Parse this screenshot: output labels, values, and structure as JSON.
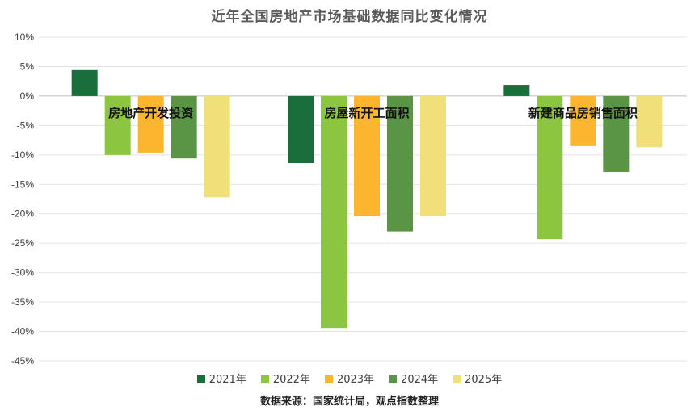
{
  "chart_data": {
    "type": "bar",
    "title": "近年全国房地产市场基础数据同比变化情况",
    "categories": [
      "房地产开发投资",
      "房屋新开工面积",
      "新建商品房销售面积"
    ],
    "series": [
      {
        "name": "2021年",
        "color": "#1a6e3c",
        "values": [
          4.4,
          -11.4,
          1.9
        ]
      },
      {
        "name": "2022年",
        "color": "#8cc540",
        "values": [
          -10.0,
          -39.4,
          -24.3
        ]
      },
      {
        "name": "2023年",
        "color": "#fbb52e",
        "values": [
          -9.6,
          -20.4,
          -8.5
        ]
      },
      {
        "name": "2024年",
        "color": "#5a9445",
        "values": [
          -10.6,
          -23.0,
          -12.9
        ]
      },
      {
        "name": "2025年",
        "color": "#f1e07a",
        "values": [
          -17.2,
          -20.4,
          -8.7
        ]
      }
    ],
    "ylim": [
      -45,
      10
    ],
    "y_ticks": [
      "10%",
      "5%",
      "0%",
      "-5%",
      "-10%",
      "-15%",
      "-20%",
      "-25%",
      "-30%",
      "-35%",
      "-40%",
      "-45%"
    ],
    "y_tick_values": [
      10,
      5,
      0,
      -5,
      -10,
      -15,
      -20,
      -25,
      -30,
      -35,
      -40,
      -45
    ],
    "grid": true,
    "legend_position": "bottom",
    "source": "数据来源：国家统计局，观点指数整理"
  }
}
